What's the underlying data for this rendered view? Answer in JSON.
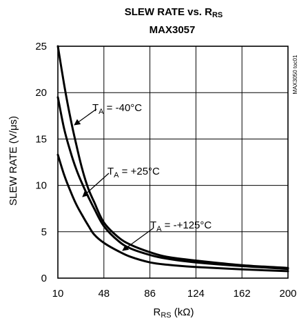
{
  "chart_data": {
    "type": "line",
    "title_line1": "SLEW RATE vs. R",
    "title_sub": "RS",
    "title_line2": "MAX3057",
    "xlabel_main": "R",
    "xlabel_sub": "RS",
    "xlabel_unit": " (kΩ)",
    "ylabel": "SLEW RATE (V/μs)",
    "side_label": "MAX3050 toc01",
    "xlim": [
      10,
      200
    ],
    "ylim": [
      0,
      25
    ],
    "x_ticks": [
      10,
      48,
      86,
      124,
      162,
      200
    ],
    "y_ticks": [
      0,
      5,
      10,
      15,
      20,
      25
    ],
    "x_tick_labels": [
      "10",
      "48",
      "86",
      "124",
      "162",
      "200"
    ],
    "y_tick_labels": [
      "0",
      "5",
      "10",
      "15",
      "20",
      "25"
    ],
    "grid": true,
    "series": [
      {
        "name": "T_A = -40°C",
        "x": [
          10,
          15,
          20,
          25,
          30,
          35,
          40,
          48,
          60,
          70,
          86,
          100,
          124,
          162,
          200
        ],
        "y": [
          25,
          21,
          17.5,
          14.5,
          11.8,
          9.7,
          8.2,
          6.0,
          4.4,
          3.6,
          2.8,
          2.3,
          1.9,
          1.4,
          1.1
        ]
      },
      {
        "name": "T_A = +25°C",
        "x": [
          10,
          15,
          20,
          25,
          30,
          35,
          40,
          48,
          60,
          70,
          86,
          100,
          124,
          162,
          200
        ],
        "y": [
          19.5,
          16.2,
          13.8,
          11.8,
          10.2,
          8.8,
          7.5,
          5.6,
          4.0,
          3.2,
          2.5,
          2.1,
          1.7,
          1.3,
          1.0
        ]
      },
      {
        "name": "T_A = -+125°C",
        "x": [
          10,
          15,
          20,
          25,
          30,
          35,
          40,
          48,
          60,
          70,
          86,
          100,
          124,
          162,
          200
        ],
        "y": [
          13.3,
          11.2,
          9.5,
          8.0,
          6.8,
          5.7,
          4.7,
          3.8,
          2.9,
          2.3,
          1.7,
          1.45,
          1.2,
          0.95,
          0.75
        ]
      }
    ],
    "annotations": [
      {
        "main": "T",
        "sub": "A",
        "rest": " = -40°C",
        "series": 0
      },
      {
        "main": "T",
        "sub": "A",
        "rest": " = +25°C",
        "series": 1
      },
      {
        "main": "T",
        "sub": "A",
        "rest": " = -+125°C",
        "series": 2
      }
    ]
  }
}
